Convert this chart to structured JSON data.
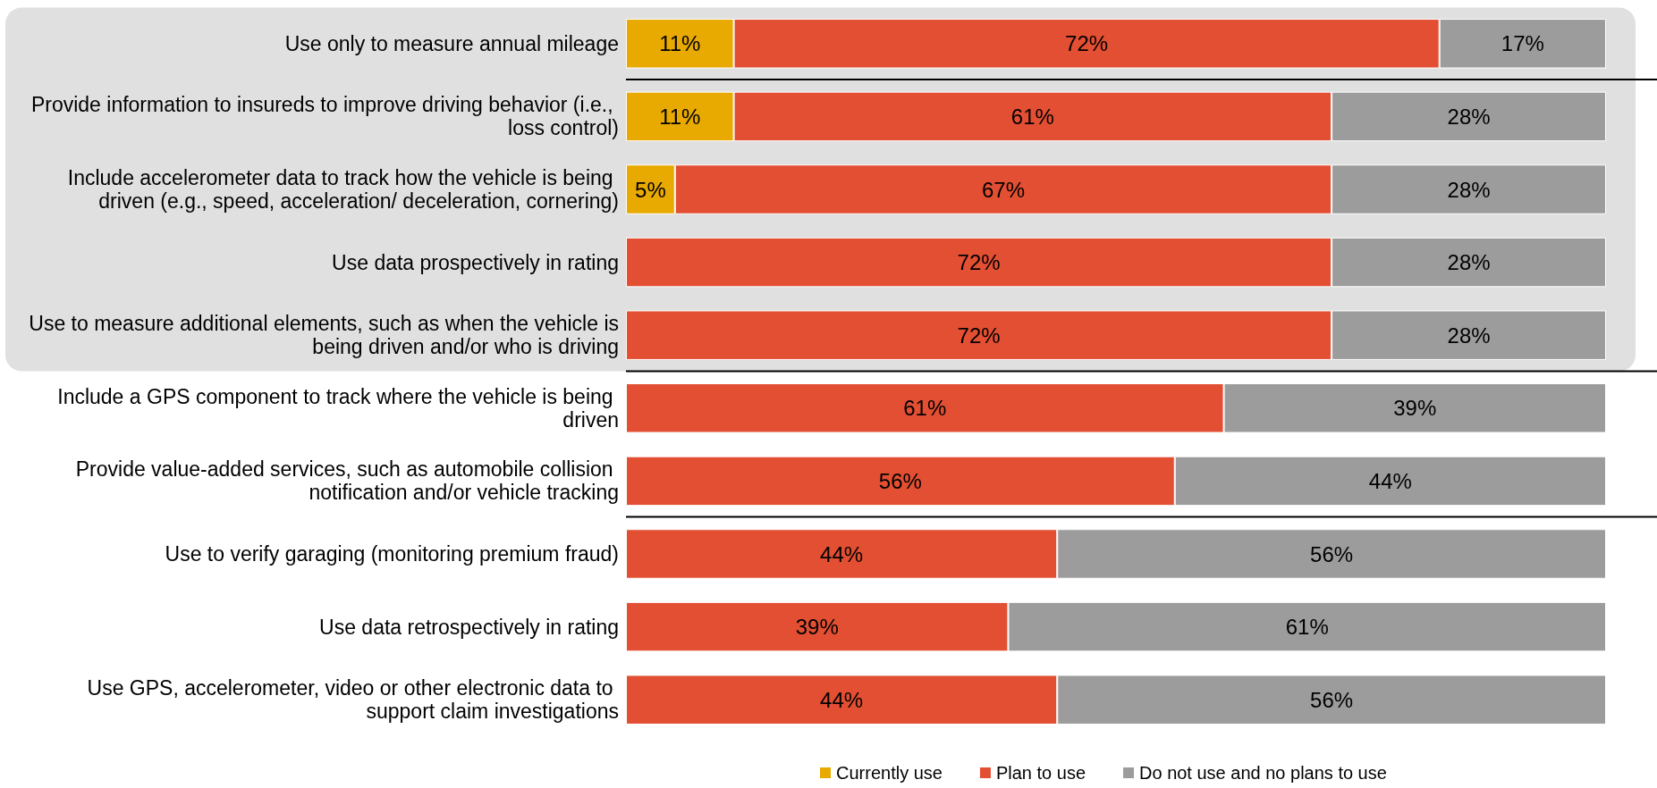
{
  "chart_data": {
    "type": "bar",
    "orientation": "horizontal",
    "stacked": true,
    "categories": [
      "Use only to measure annual mileage",
      "Provide information to insureds to improve driving behavior (i.e., loss control)",
      "Include accelerometer data to track how the vehicle is being driven (e.g., speed, acceleration/ deceleration, cornering)",
      "Use data prospectively in rating",
      "Use to measure additional elements, such as when the vehicle is being driven and/or who is driving",
      "Include a GPS component to track where the vehicle is being driven",
      "Provide value-added services, such as automobile collision notification and/or vehicle tracking",
      "Use to verify garaging (monitoring premium fraud)",
      "Use data retrospectively in rating",
      "Use GPS, accelerometer, video or other electronic data to support claim investigations"
    ],
    "series": [
      {
        "name": "Currently use",
        "color": "#e8a900",
        "values": [
          11,
          11,
          5,
          null,
          null,
          null,
          null,
          null,
          null,
          null
        ],
        "value_labels": [
          "11%",
          "11%",
          "5%",
          null,
          null,
          null,
          null,
          null,
          null,
          null
        ]
      },
      {
        "name": "Plan to use",
        "color": "#e24f33",
        "values": [
          72,
          61,
          67,
          72,
          72,
          61,
          56,
          44,
          39,
          44
        ],
        "value_labels": [
          "72%",
          "61%",
          "67%",
          "72%",
          "72%",
          "61%",
          "56%",
          "44%",
          "39%",
          "44%"
        ]
      },
      {
        "name": "Do not use and no plans to use",
        "color": "#9c9c9c",
        "values": [
          17,
          28,
          28,
          28,
          28,
          39,
          44,
          56,
          61,
          56
        ],
        "value_labels": [
          "17%",
          "28%",
          "28%",
          "28%",
          "28%",
          "39%",
          "44%",
          "56%",
          "61%",
          "56%"
        ]
      }
    ],
    "xlim": [
      0,
      100
    ],
    "tick_labels": "y",
    "legend": "bottom",
    "marker": "square",
    "bands": [
      {
        "axis": "y",
        "from": "Use only to measure annual mileage",
        "to": "Use to measure additional elements, such as when the vehicle is being driven and/or who is driving",
        "color": "#e0e0e0"
      }
    ],
    "ref_lines": [
      {
        "axis": "y",
        "value": "Use only to measure annual mileage",
        "color": "#000000"
      },
      {
        "axis": "y",
        "value": "Use to measure additional elements, such as when the vehicle is being driven and/or who is driving",
        "color": "#000000"
      },
      {
        "axis": "y",
        "value": "Provide value-added services, such as automobile collision notification and/or vehicle tracking",
        "color": "#000000"
      }
    ]
  }
}
